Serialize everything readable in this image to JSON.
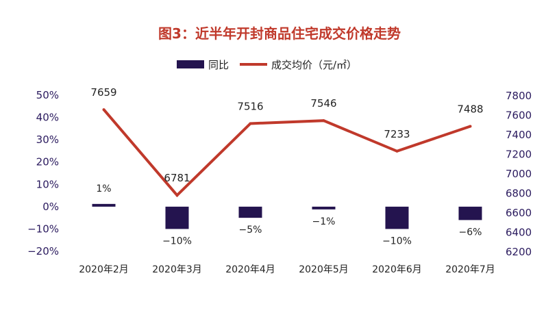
{
  "chart_data": {
    "type": "bar+line",
    "title": "图3：近半年开封商品住宅成交价格走势",
    "categories": [
      "2020年2月",
      "2020年3月",
      "2020年4月",
      "2020年5月",
      "2020年6月",
      "2020年7月"
    ],
    "series": [
      {
        "name": "同比",
        "type": "bar",
        "axis": "left",
        "values": [
          1,
          -10,
          -5,
          -1,
          -10,
          -6
        ],
        "labels": [
          "1%",
          "−10%",
          "−5%",
          "−1%",
          "−10%",
          "−6%"
        ]
      },
      {
        "name": "成交均价（元/㎡）",
        "type": "line",
        "axis": "right",
        "values": [
          7659,
          6781,
          7516,
          7546,
          7233,
          7488
        ],
        "labels": [
          "7659",
          "6781",
          "7516",
          "7546",
          "7233",
          "7488"
        ]
      }
    ],
    "y_left": {
      "ylim": [
        -20,
        50
      ],
      "ticks": [
        "50%",
        "40%",
        "30%",
        "20%",
        "10%",
        "0%",
        "−10%",
        "−20%"
      ],
      "tick_values": [
        50,
        40,
        30,
        20,
        10,
        0,
        -10,
        -20
      ]
    },
    "y_right": {
      "ylim": [
        6200,
        7800
      ],
      "ticks": [
        "7800",
        "7600",
        "7400",
        "7200",
        "7000",
        "6800",
        "6600",
        "6400",
        "6200"
      ],
      "tick_values": [
        7800,
        7600,
        7400,
        7200,
        7000,
        6800,
        6600,
        6400,
        6200
      ]
    },
    "legend_position": "top-center",
    "grid": false,
    "colors": {
      "title": "#c0392b",
      "bar": "#24144f",
      "line": "#c0392b",
      "tick_text": "#2a1a5e"
    }
  }
}
